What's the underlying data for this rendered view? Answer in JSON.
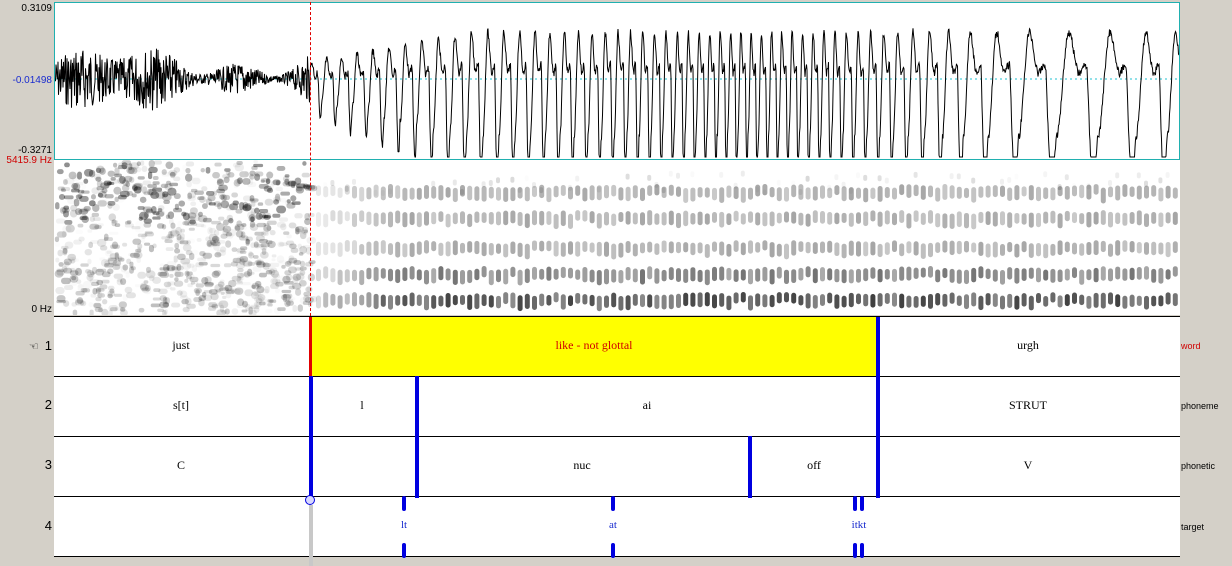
{
  "waveform": {
    "ymax": "0.3109",
    "ycenter": "-0.01498",
    "ymin": "-0.3271"
  },
  "spectrogram": {
    "fmax": "5415.9 Hz",
    "fmin": "0 Hz"
  },
  "tiers": [
    {
      "number": "1",
      "name": "word",
      "intervals": [
        "just",
        "like - not glottal",
        "urgh"
      ]
    },
    {
      "number": "2",
      "name": "phoneme",
      "intervals": [
        "s[t]",
        "l",
        "ai",
        "STRUT"
      ]
    },
    {
      "number": "3",
      "name": "phonetic",
      "intervals": [
        "C",
        "nuc",
        "off",
        "V"
      ]
    },
    {
      "number": "4",
      "name": "target",
      "points": [
        "lt",
        "at",
        "itkt"
      ]
    }
  ],
  "colors": {
    "selection": "#ffff00",
    "cursor": "#e00000",
    "boundary": "#0000e0"
  },
  "icons": {
    "tier-pointer": "pointing-hand-icon"
  }
}
